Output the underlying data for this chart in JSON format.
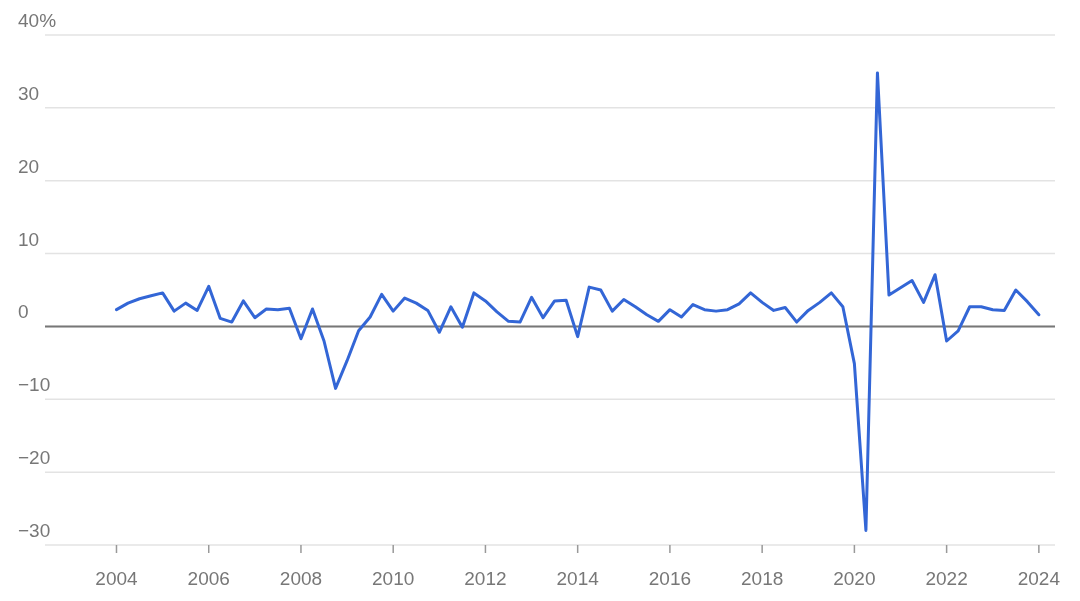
{
  "chart_data": {
    "type": "line",
    "x": [
      2004,
      2004.25,
      2004.5,
      2004.75,
      2005,
      2005.25,
      2005.5,
      2005.75,
      2006,
      2006.25,
      2006.5,
      2006.75,
      2007,
      2007.25,
      2007.5,
      2007.75,
      2008,
      2008.25,
      2008.5,
      2008.75,
      2009,
      2009.25,
      2009.5,
      2009.75,
      2010,
      2010.25,
      2010.5,
      2010.75,
      2011,
      2011.25,
      2011.5,
      2011.75,
      2012,
      2012.25,
      2012.5,
      2012.75,
      2013,
      2013.25,
      2013.5,
      2013.75,
      2014,
      2014.25,
      2014.5,
      2014.75,
      2015,
      2015.25,
      2015.5,
      2015.75,
      2016,
      2016.25,
      2016.5,
      2016.75,
      2017,
      2017.25,
      2017.5,
      2017.75,
      2018,
      2018.25,
      2018.5,
      2018.75,
      2019,
      2019.25,
      2019.5,
      2019.75,
      2020,
      2020.25,
      2020.5,
      2020.75,
      2021,
      2021.25,
      2021.5,
      2021.75,
      2022,
      2022.25,
      2022.5,
      2022.75,
      2023,
      2023.25,
      2023.5,
      2023.75,
      2024
    ],
    "series": [
      {
        "color": "#3366d6",
        "values": [
          2.3,
          3.2,
          3.8,
          4.2,
          4.6,
          2.1,
          3.2,
          2.2,
          5.5,
          1.1,
          0.6,
          3.5,
          1.2,
          2.4,
          2.3,
          2.5,
          -1.7,
          2.4,
          -2.0,
          -8.5,
          -4.7,
          -0.6,
          1.3,
          4.4,
          2.1,
          3.9,
          3.2,
          2.2,
          -0.8,
          2.7,
          -0.1,
          4.6,
          3.5,
          2.0,
          0.7,
          0.6,
          4.0,
          1.2,
          3.5,
          3.6,
          -1.4,
          5.4,
          5.0,
          2.1,
          3.7,
          2.7,
          1.6,
          0.7,
          2.3,
          1.3,
          3.0,
          2.3,
          2.1,
          2.3,
          3.1,
          4.6,
          3.3,
          2.2,
          2.6,
          0.6,
          2.2,
          3.3,
          4.6,
          2.7,
          -5.1,
          -28.0,
          34.8,
          4.3,
          5.3,
          6.3,
          3.3,
          7.1,
          -2.0,
          -0.6,
          2.7,
          2.7,
          2.3,
          2.2,
          5.0,
          3.4,
          1.6
        ]
      }
    ],
    "xlim": [
      2002.45,
      2024.35
    ],
    "xticks": [
      2004,
      2006,
      2008,
      2010,
      2012,
      2014,
      2016,
      2018,
      2020,
      2022,
      2024
    ],
    "ylim": [
      -30,
      40
    ],
    "yticks": [
      {
        "value": -30,
        "label": "−30"
      },
      {
        "value": -20,
        "label": "−20"
      },
      {
        "value": -10,
        "label": "−10"
      },
      0,
      10,
      20,
      30,
      {
        "value": 40,
        "label": "40%"
      }
    ],
    "ref_lines": [
      {
        "axis": "y",
        "value": 0,
        "color": "#777777"
      }
    ],
    "grid": "y",
    "marker": "none",
    "line_style": "solid"
  }
}
